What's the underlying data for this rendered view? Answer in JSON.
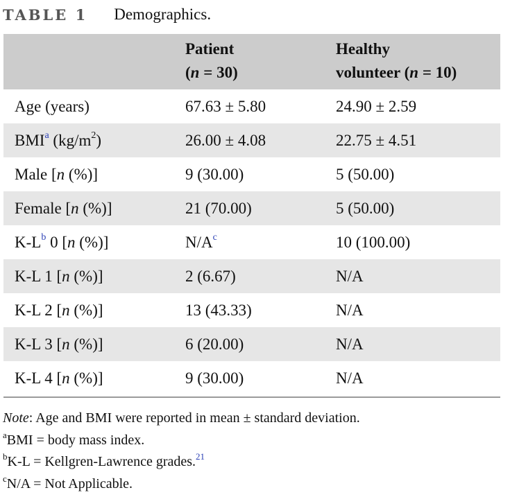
{
  "caption": {
    "label": "TABLE 1",
    "title": "Demographics."
  },
  "table": {
    "header": {
      "patient_line1": "Patient",
      "patient_n_open": "(",
      "patient_n_var": "n",
      "patient_n_rest": " = 30)",
      "healthy_line1": "Healthy",
      "healthy_line2_pre": "volunteer (",
      "healthy_n_var": "n",
      "healthy_n_rest": " = 10)"
    },
    "rows": [
      {
        "label_pre": "Age (years)",
        "label_sup": "",
        "label_post": "",
        "label_ital": "",
        "label_tail": "",
        "patient": "67.63 ± 5.80",
        "patient_sup": "",
        "healthy": "24.90 ± 2.59"
      },
      {
        "label_pre": "BMI",
        "label_sup": "a",
        "label_post": " (kg/m",
        "label_sup2": "2",
        "label_tail": ")",
        "patient": "26.00 ± 4.08",
        "patient_sup": "",
        "healthy": "22.75 ± 4.51"
      },
      {
        "label_pre": "Male [",
        "label_ital": "n",
        "label_tail": " (%)]",
        "patient": "9 (30.00)",
        "patient_sup": "",
        "healthy": "5 (50.00)"
      },
      {
        "label_pre": "Female [",
        "label_ital": "n",
        "label_tail": " (%)]",
        "patient": "21 (70.00)",
        "patient_sup": "",
        "healthy": "5 (50.00)"
      },
      {
        "label_pre": "K-L",
        "label_sup": "b",
        "label_post": " 0 [",
        "label_ital": "n",
        "label_tail": " (%)]",
        "patient": "N/A",
        "patient_sup": "c",
        "healthy": "10 (100.00)"
      },
      {
        "label_pre": "K-L 1 [",
        "label_ital": "n",
        "label_tail": " (%)]",
        "patient": "2 (6.67)",
        "patient_sup": "",
        "healthy": "N/A"
      },
      {
        "label_pre": "K-L 2 [",
        "label_ital": "n",
        "label_tail": " (%)]",
        "patient": "13 (43.33)",
        "patient_sup": "",
        "healthy": "N/A"
      },
      {
        "label_pre": "K-L 3 [",
        "label_ital": "n",
        "label_tail": " (%)]",
        "patient": "6 (20.00)",
        "patient_sup": "",
        "healthy": "N/A"
      },
      {
        "label_pre": "K-L 4 [",
        "label_ital": "n",
        "label_tail": " (%)]",
        "patient": "9 (30.00)",
        "patient_sup": "",
        "healthy": "N/A"
      }
    ]
  },
  "notes": {
    "note_label": "Note",
    "note_text": ": Age and BMI were reported in mean ± standard deviation.",
    "a_sup": "a",
    "a_text": "BMI = body mass index.",
    "b_sup": "b",
    "b_text": "K-L = Kellgren-Lawrence grades.",
    "b_ref": "21",
    "c_sup": "c",
    "c_text": "N/A = Not Applicable."
  }
}
